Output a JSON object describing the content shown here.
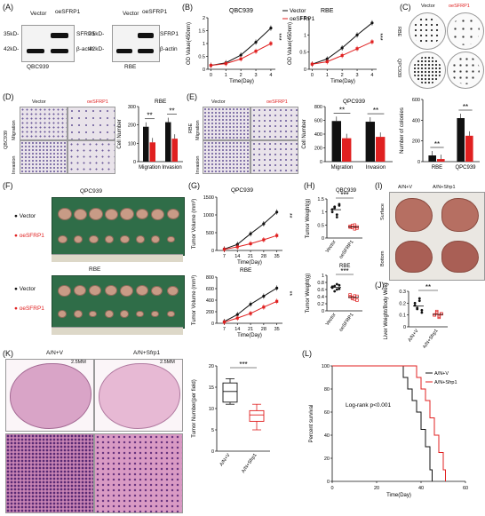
{
  "panels": {
    "A": "(A)",
    "B": "(B)",
    "C": "(C)",
    "D": "(D)",
    "E": "(E)",
    "F": "(F)",
    "G": "(G)",
    "H": "(H)",
    "I": "(I)",
    "J": "(J)",
    "K": "(K)",
    "L": "(L)"
  },
  "a": {
    "vector": "Vector",
    "oe": "oeSFRP1",
    "kd35": "35kD-",
    "kd42": "42kD-",
    "sfrp1": "SFRP1",
    "actin": "β-actin",
    "cell1": "QBC939",
    "cell2": "RBE"
  },
  "legend": {
    "vector": "Vector",
    "oe": "oeSFRP1",
    "vector_color": "#111111",
    "oe_color": "#e02020"
  },
  "c": {
    "rbe": "RBE",
    "qpc": "QPC939"
  },
  "d": {
    "title": "RBE",
    "qbc": "QBC939",
    "migration": "Migration",
    "invasion": "Invasion",
    "ylabel": "Cell Number",
    "sig1": "**",
    "sig2": "**"
  },
  "e": {
    "title": "QPC939",
    "rbe": "RBE",
    "migration": "Migration",
    "invasion": "Invasion",
    "ylabel": "Cell Number",
    "sig1": "**",
    "sig2": "**",
    "col_ylabel": "Number of colonies",
    "col_x1": "RBE",
    "col_x2": "QPC939",
    "col_sig1": "**",
    "col_sig2": "**"
  },
  "f": {
    "title1": "QPC939",
    "title2": "RBE",
    "vector": "Vector",
    "oe": "oeSFRP1"
  },
  "g": {
    "title1": "QPC939",
    "title2": "RBE",
    "ylabel": "Tumor Volume (mm³)",
    "xlabel": "Time(Day)",
    "sig": "**"
  },
  "h": {
    "title1": "QBC939",
    "title2": "RBE",
    "ylabel": "Tumor Weight(g)",
    "x1": "Vector",
    "x2": "oeSFRP1",
    "sig": "***"
  },
  "i": {
    "col1": "A/N+V",
    "col2": "A/N+Sfrp1",
    "row1": "Surface",
    "row2": "Bottom"
  },
  "j": {
    "ylabel": "Liver Weight/Body Weight",
    "x1": "A/N+V",
    "x2": "A/N+Sfrp1",
    "sig": "**"
  },
  "k": {
    "col1": "A/N+V",
    "col2": "A/N+Sfrp1",
    "scale1": "2.5MM",
    "scale2": "2.5MM",
    "ylabel": "Tumor Number(per field)",
    "x1": "A/N+V",
    "x2": "A/N+Sfrp1",
    "sig": "***"
  },
  "l": {
    "ylabel": "Percent survival",
    "xlabel": "Time(Day)",
    "stat": "Log-rank p<0.001",
    "s1": "A/N+V",
    "s2": "A/N+Sfrp1"
  },
  "chart_data": [
    {
      "type": "line",
      "title": "QBC939",
      "xlabel": "Time(Day)",
      "ylabel": "OD Value(450nm)",
      "x": [
        0,
        1,
        2,
        3,
        4
      ],
      "ylim": [
        0,
        2.0
      ],
      "yticks": [
        0,
        0.5,
        1.0,
        1.5,
        2.0
      ],
      "series": [
        {
          "name": "Vector",
          "values": [
            0.15,
            0.25,
            0.55,
            1.05,
            1.6
          ]
        },
        {
          "name": "oeSFRP1",
          "values": [
            0.15,
            0.22,
            0.4,
            0.7,
            1.0
          ]
        }
      ],
      "sig": "***"
    },
    {
      "type": "line",
      "title": "RBE",
      "xlabel": "Time(Day)",
      "ylabel": "OD Value(450nm)",
      "x": [
        0,
        1,
        2,
        3,
        4
      ],
      "ylim": [
        0,
        1.5
      ],
      "yticks": [
        0,
        0.5,
        1.0,
        1.5
      ],
      "series": [
        {
          "name": "Vector",
          "values": [
            0.15,
            0.3,
            0.62,
            1.0,
            1.35
          ]
        },
        {
          "name": "oeSFRP1",
          "values": [
            0.15,
            0.22,
            0.4,
            0.6,
            0.8
          ]
        }
      ],
      "sig": "***"
    },
    {
      "type": "bar",
      "title": "RBE",
      "ylabel": "Cell Number",
      "categories": [
        "Migration",
        "Invasion"
      ],
      "ylim": [
        0,
        300
      ],
      "yticks": [
        0,
        100,
        200,
        300
      ],
      "series": [
        {
          "name": "Vector",
          "values": [
            190,
            215
          ]
        },
        {
          "name": "oeSFRP1",
          "values": [
            105,
            125
          ]
        }
      ]
    },
    {
      "type": "bar",
      "title": "QPC939",
      "ylabel": "Cell Number",
      "categories": [
        "Migration",
        "Invasion"
      ],
      "ylim": [
        0,
        800
      ],
      "yticks": [
        0,
        200,
        400,
        600,
        800
      ],
      "series": [
        {
          "name": "Vector",
          "values": [
            590,
            580
          ]
        },
        {
          "name": "oeSFRP1",
          "values": [
            340,
            360
          ]
        }
      ]
    },
    {
      "type": "bar",
      "ylabel": "Number of colonies",
      "categories": [
        "RBE",
        "QPC939"
      ],
      "ylim": [
        0,
        600
      ],
      "yticks": [
        0,
        200,
        400,
        600
      ],
      "series": [
        {
          "name": "Vector",
          "values": [
            60,
            420
          ]
        },
        {
          "name": "oeSFRP1",
          "values": [
            25,
            250
          ]
        }
      ]
    },
    {
      "type": "line",
      "title": "QPC939",
      "xlabel": "Time(Day)",
      "ylabel": "Tumor Volume (mm³)",
      "x": [
        7,
        14,
        21,
        28,
        35
      ],
      "ylim": [
        0,
        1500
      ],
      "yticks": [
        0,
        500,
        1000,
        1500
      ],
      "series": [
        {
          "name": "Vector",
          "values": [
            40,
            170,
            470,
            750,
            1080
          ]
        },
        {
          "name": "oeSFRP1",
          "values": [
            30,
            100,
            190,
            300,
            420
          ]
        }
      ]
    },
    {
      "type": "line",
      "title": "RBE",
      "xlabel": "Time(Day)",
      "ylabel": "Tumor Volume (mm³)",
      "x": [
        7,
        14,
        21,
        28,
        35
      ],
      "ylim": [
        0,
        800
      ],
      "yticks": [
        0,
        200,
        400,
        600,
        800
      ],
      "series": [
        {
          "name": "Vector",
          "values": [
            30,
            150,
            330,
            470,
            610
          ]
        },
        {
          "name": "oeSFRP1",
          "values": [
            20,
            90,
            170,
            280,
            380
          ]
        }
      ]
    },
    {
      "type": "scatter",
      "title": "QBC939",
      "ylabel": "Tumor Weight(g)",
      "categories": [
        "Vector",
        "oeSFRP1"
      ],
      "ylim": [
        0,
        1.5
      ],
      "yticks": [
        0,
        0.5,
        1.0,
        1.5
      ],
      "series": [
        {
          "name": "Vector",
          "values": [
            1.1,
            1.2,
            0.9,
            1.3,
            1.0,
            1.15,
            0.8,
            1.25
          ]
        },
        {
          "name": "oeSFRP1",
          "values": [
            0.45,
            0.4,
            0.5,
            0.38,
            0.42,
            0.48,
            0.35,
            0.43
          ]
        }
      ]
    },
    {
      "type": "scatter",
      "title": "RBE",
      "ylabel": "Tumor Weight(g)",
      "categories": [
        "Vector",
        "oeSFRP1"
      ],
      "ylim": [
        0,
        1.0
      ],
      "yticks": [
        0,
        0.2,
        0.4,
        0.6,
        0.8,
        1.0
      ],
      "series": [
        {
          "name": "Vector",
          "values": [
            0.65,
            0.7,
            0.6,
            0.72,
            0.68,
            0.55,
            0.75,
            0.62
          ]
        },
        {
          "name": "oeSFRP1",
          "values": [
            0.4,
            0.35,
            0.42,
            0.3,
            0.45,
            0.38,
            0.33,
            0.41
          ]
        }
      ]
    },
    {
      "type": "scatter",
      "ylabel": "Liver Weight/Body Weight",
      "categories": [
        "A/N+V",
        "A/N+Sfrp1"
      ],
      "ylim": [
        0,
        0.3
      ],
      "yticks": [
        0,
        0.1,
        0.2,
        0.3
      ],
      "series": [
        {
          "name": "A/N+V",
          "values": [
            0.2,
            0.15,
            0.22,
            0.12,
            0.18,
            0.16,
            0.24,
            0.14
          ]
        },
        {
          "name": "A/N+Sfrp1",
          "values": [
            0.1,
            0.12,
            0.09,
            0.11,
            0.1,
            0.13,
            0.08,
            0.11
          ]
        }
      ]
    },
    {
      "type": "box",
      "ylabel": "Tumor Number(per field)",
      "categories": [
        "A/N+V",
        "A/N+Sfrp1"
      ],
      "ylim": [
        0,
        20
      ],
      "yticks": [
        0,
        5,
        10,
        15,
        20
      ],
      "series": [
        {
          "name": "A/N+V",
          "min": 11,
          "q1": 11.5,
          "median": 14,
          "q3": 16,
          "max": 17
        },
        {
          "name": "A/N+Sfrp1",
          "min": 5,
          "q1": 7,
          "median": 8.5,
          "q3": 9.5,
          "max": 11
        }
      ]
    },
    {
      "type": "line",
      "ylabel": "Percent survival",
      "xlabel": "Time(Day)",
      "ylim": [
        0,
        100
      ],
      "xlim": [
        0,
        60
      ],
      "yticks": [
        0,
        20,
        40,
        60,
        80,
        100
      ],
      "xticks": [
        0,
        20,
        40,
        60
      ],
      "series": [
        {
          "name": "A/N+V",
          "x": [
            0,
            32,
            34,
            36,
            38,
            40,
            42,
            44,
            45
          ],
          "values": [
            100,
            90,
            80,
            70,
            60,
            45,
            30,
            10,
            0
          ]
        },
        {
          "name": "A/N+Sfrp1",
          "x": [
            0,
            38,
            40,
            42,
            44,
            46,
            48,
            50,
            51
          ],
          "values": [
            100,
            90,
            80,
            70,
            55,
            40,
            25,
            10,
            0
          ]
        }
      ]
    }
  ]
}
